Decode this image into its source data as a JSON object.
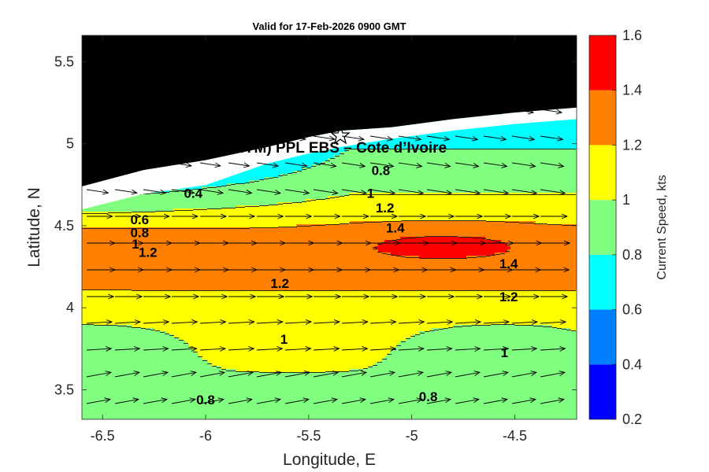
{
  "chart_data": {
    "type": "heatmap",
    "title": "Valid for 17-Feb-2026 0900 GMT",
    "xlabel": "Longitude, E",
    "ylabel": "Latitude, N",
    "xlim": [
      -6.6,
      -4.2
    ],
    "ylim": [
      3.32,
      5.66
    ],
    "xticks": [
      "-6.5",
      "-6",
      "-5.5",
      "-5",
      "-4.5"
    ],
    "xtick_values": [
      -6.5,
      -6,
      -5.5,
      -5,
      -4.5
    ],
    "yticks": [
      "3.5",
      "4",
      "4.5",
      "5",
      "5.5"
    ],
    "ytick_values": [
      3.5,
      4,
      4.5,
      5,
      5.5
    ],
    "annotation": "A (ONHYM) PPL EBS  – Cote d’Ivoire",
    "marker": {
      "name": "star",
      "lon": -5.34,
      "lat": 5.06
    },
    "colorbar": {
      "label": "Current Speed, kts",
      "ticks": [
        "0.2",
        "0.4",
        "0.6",
        "0.8",
        "1",
        "1.2",
        "1.4",
        "1.6"
      ],
      "tick_values": [
        0.2,
        0.4,
        0.6,
        0.8,
        1.0,
        1.2,
        1.4,
        1.6
      ],
      "levels": [
        0.2,
        0.4,
        0.6,
        0.8,
        1.0,
        1.2,
        1.4,
        1.6
      ],
      "colors": [
        "#0000ff",
        "#0080ff",
        "#00ffff",
        "#80ff80",
        "#ffff00",
        "#ff8000",
        "#ff0000"
      ]
    },
    "land_color": "#000000",
    "no_data_color": "#ffffff",
    "coastline": [
      [
        -6.6,
        4.74
      ],
      [
        -6.3,
        4.84
      ],
      [
        -6.0,
        4.9
      ],
      [
        -5.7,
        4.98
      ],
      [
        -5.5,
        5.04
      ],
      [
        -5.34,
        5.08
      ],
      [
        -5.1,
        5.1
      ],
      [
        -4.8,
        5.15
      ],
      [
        -4.5,
        5.19
      ],
      [
        -4.2,
        5.22
      ]
    ],
    "contour_labels": [
      {
        "text": "0.4",
        "lon": -6.06,
        "lat": 4.67
      },
      {
        "text": "0.6",
        "lon": -6.32,
        "lat": 4.51
      },
      {
        "text": "0.8",
        "lon": -6.32,
        "lat": 4.43
      },
      {
        "text": "1",
        "lon": -6.34,
        "lat": 4.36
      },
      {
        "text": "1.2",
        "lon": -6.28,
        "lat": 4.31
      },
      {
        "text": "0.8",
        "lon": -5.15,
        "lat": 4.81
      },
      {
        "text": "1",
        "lon": -5.2,
        "lat": 4.67
      },
      {
        "text": "1.2",
        "lon": -5.13,
        "lat": 4.58
      },
      {
        "text": "1.4",
        "lon": -5.08,
        "lat": 4.46
      },
      {
        "text": "1.2",
        "lon": -5.64,
        "lat": 4.12
      },
      {
        "text": "1.4",
        "lon": -4.53,
        "lat": 4.24
      },
      {
        "text": "1.2",
        "lon": -4.53,
        "lat": 4.04
      },
      {
        "text": "1",
        "lon": -5.62,
        "lat": 3.78
      },
      {
        "text": "1",
        "lon": -4.55,
        "lat": 3.7
      },
      {
        "text": "0.8",
        "lon": -6.0,
        "lat": 3.41
      },
      {
        "text": "0.8",
        "lon": -4.92,
        "lat": 3.43
      }
    ]
  }
}
